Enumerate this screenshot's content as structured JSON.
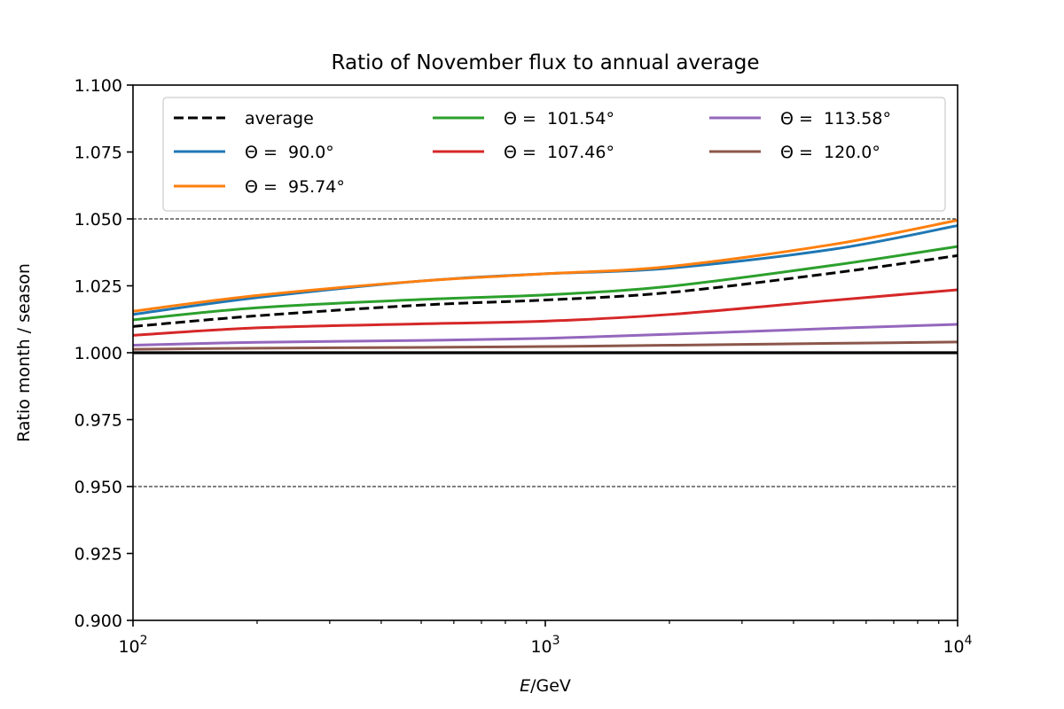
{
  "chart_data": {
    "type": "line",
    "title": "Ratio of November flux to annual average",
    "xlabel_italic": "E",
    "xlabel_rest": "/GeV",
    "ylabel": "Ratio month / season",
    "xscale": "log",
    "xlim": [
      100,
      10000
    ],
    "ylim": [
      0.9,
      1.1
    ],
    "xticks": [
      {
        "value": 100,
        "base": "10",
        "exp": "2"
      },
      {
        "value": 1000,
        "base": "10",
        "exp": "3"
      },
      {
        "value": 10000,
        "base": "10",
        "exp": "4"
      }
    ],
    "yticks": [
      "0.900",
      "0.925",
      "0.950",
      "0.975",
      "1.000",
      "1.025",
      "1.050",
      "1.075",
      "1.100"
    ],
    "reference_lines": [
      {
        "y": 1.0,
        "style": "solid",
        "color": "#000000"
      },
      {
        "y": 1.05,
        "style": "dashed",
        "color": "#000000"
      },
      {
        "y": 0.95,
        "style": "dashed",
        "color": "#000000"
      }
    ],
    "legend_position": "top",
    "x": [
      100,
      200,
      500,
      1000,
      2000,
      5000,
      10000
    ],
    "series": [
      {
        "name": "average",
        "color": "#000000",
        "dashed": true,
        "values": [
          1.0098,
          1.0138,
          1.0178,
          1.0197,
          1.0225,
          1.0298,
          1.0363
        ]
      },
      {
        "name": "Θ =  90.0°",
        "color": "#1f77b4",
        "dashed": false,
        "values": [
          1.0143,
          1.0206,
          1.0268,
          1.0295,
          1.0316,
          1.0387,
          1.0475
        ]
      },
      {
        "name": "Θ =  95.74°",
        "color": "#ff7f0e",
        "dashed": false,
        "values": [
          1.0155,
          1.0214,
          1.0268,
          1.0295,
          1.0322,
          1.0405,
          1.0495
        ]
      },
      {
        "name": "Θ =  101.54°",
        "color": "#2ca02c",
        "dashed": false,
        "values": [
          1.0123,
          1.0168,
          1.0199,
          1.0216,
          1.0248,
          1.0327,
          1.0397
        ]
      },
      {
        "name": "Θ =  107.46°",
        "color": "#d62728",
        "dashed": false,
        "values": [
          1.0065,
          1.0093,
          1.0108,
          1.0118,
          1.0143,
          1.0196,
          1.0235
        ]
      },
      {
        "name": "Θ =  113.58°",
        "color": "#9467bd",
        "dashed": false,
        "values": [
          1.0028,
          1.0039,
          1.0046,
          1.0054,
          1.0069,
          1.0091,
          1.0106
        ]
      },
      {
        "name": "Θ =  120.0°",
        "color": "#8c564b",
        "dashed": false,
        "values": [
          1.0013,
          1.0017,
          1.002,
          1.0023,
          1.0028,
          1.0035,
          1.004
        ]
      }
    ]
  }
}
